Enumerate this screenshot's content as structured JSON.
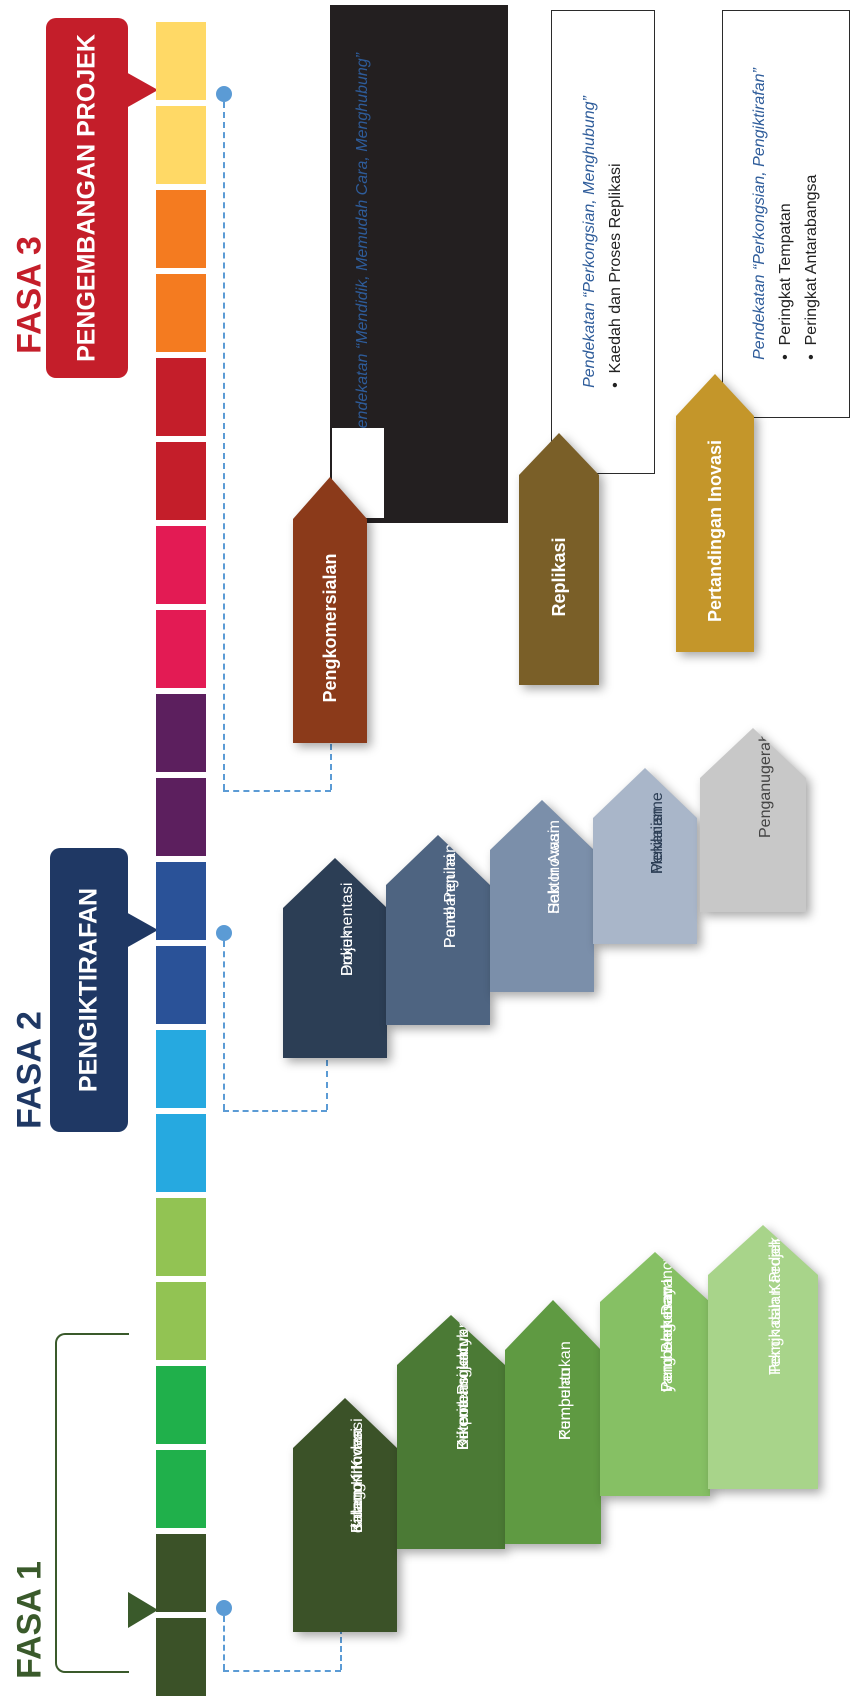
{
  "phases": [
    {
      "id": "fasa1",
      "label": "FASA 1",
      "color": "#3a5a2b",
      "title": "",
      "box_color": "#ffffff"
    },
    {
      "id": "fasa2",
      "label": "FASA 2",
      "color": "#1f3864",
      "title": "PENGIKTIRAFAN",
      "box_color": "#1f3864"
    },
    {
      "id": "fasa3",
      "label": "FASA 3",
      "color": "#c41e2a",
      "title": "PENGEMBANGAN PROJEK",
      "box_color": "#c41e2a"
    }
  ],
  "strip_colors": [
    "#ffd966",
    "#ffd966",
    "#f47b20",
    "#f47b20",
    "#c41e2a",
    "#c41e2a",
    "#e31b54",
    "#e31b54",
    "#5c1f5e",
    "#5c1f5e",
    "#2a5298",
    "#2a5298",
    "#26a9e0",
    "#26a9e0",
    "#92c353",
    "#92c353",
    "#20b04b",
    "#20b04b",
    "#3b5228",
    "#3b5228"
  ],
  "fasa1_steps": [
    {
      "lines": [
        "Bidang Inovasi",
        "dalam KIK dan",
        "Kategori Inovasi"
      ],
      "color": "#3b5228"
    },
    {
      "lines": [
        "Kriteria Projek yang",
        "Berpotensi untuk",
        "Dikembangkan"
      ],
      "color": "#4b7a35"
    },
    {
      "lines": [
        "Pembentukan",
        "Kumpulan"
      ],
      "color": "#5f9a42"
    },
    {
      "lines": [
        "Pemboleh Daya",
        "Pembangunan Inovasi",
        "yang Berkesan"
      ],
      "color": "#86c064"
    },
    {
      "lines": [
        "Teknik dan Kaedah",
        "Penghasilan Projek"
      ],
      "color": "#a8d48a"
    }
  ],
  "fasa2_steps": [
    {
      "lines": [
        "Dokumentasi",
        "Projek"
      ],
      "color": "#2c3e55"
    },
    {
      "lines": [
        "Pembangunan",
        "Panel Penilai"
      ],
      "color": "#4e6481"
    },
    {
      "lines": [
        "Hab Inovasi",
        "Sektor Awam"
      ],
      "color": "#7b8faa"
    },
    {
      "lines": [
        "Mekanisme",
        "Penilaian"
      ],
      "color": "#a9b6c9"
    },
    {
      "lines": [
        "Penganugerahan"
      ],
      "color": "#c8c8c8",
      "text_color": "#444444"
    }
  ],
  "fasa3_steps": [
    {
      "label": "Pengkomersialan",
      "color": "#8b3a1a"
    },
    {
      "label": "Replikasi",
      "color": "#7a5f28"
    },
    {
      "label": "Pertandingan Inovasi",
      "color": "#c4962a"
    }
  ],
  "notes": {
    "pengkomersialan": {
      "title": "Pendekatan “Mendidik, Memudah Cara, Menghubung”",
      "bullets": []
    },
    "replikasi": {
      "title": "Pendekatan “Perkongsian, Menghubung”",
      "bullets": [
        "Kaedah dan Proses Replikasi"
      ]
    },
    "pertandingan": {
      "title": "Pendekatan “Perkongsian, Pengiktirafan”",
      "bullets": [
        "Peringkat Tempatan",
        "Peringkat Antarabangsa"
      ]
    }
  },
  "connector_color": "#5b9bd5"
}
